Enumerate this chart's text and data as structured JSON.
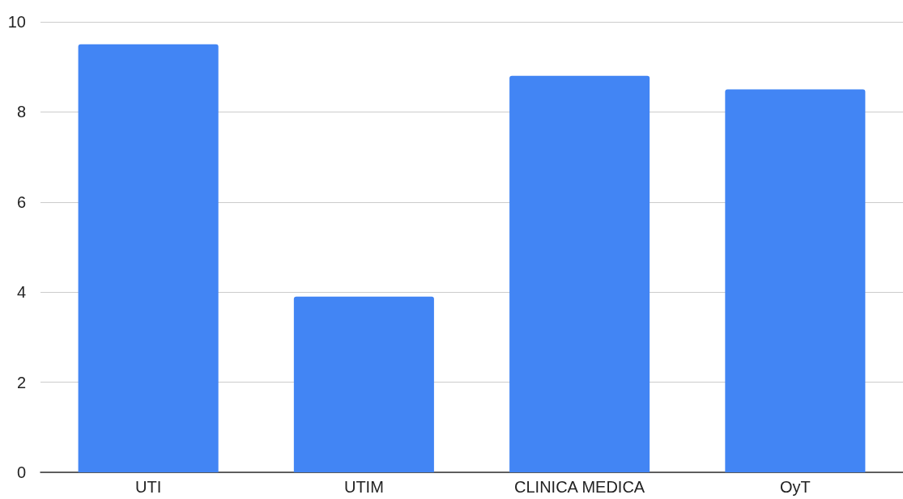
{
  "chart_data": {
    "type": "bar",
    "categories": [
      "UTI",
      "UTIM",
      "CLINICA MEDICA",
      "OyT"
    ],
    "values": [
      9.5,
      3.9,
      8.8,
      8.5
    ],
    "color": "#4285f4",
    "ylim": [
      0,
      10
    ],
    "yticks": [
      0,
      2,
      4,
      6,
      8,
      10
    ],
    "grid": "y"
  }
}
